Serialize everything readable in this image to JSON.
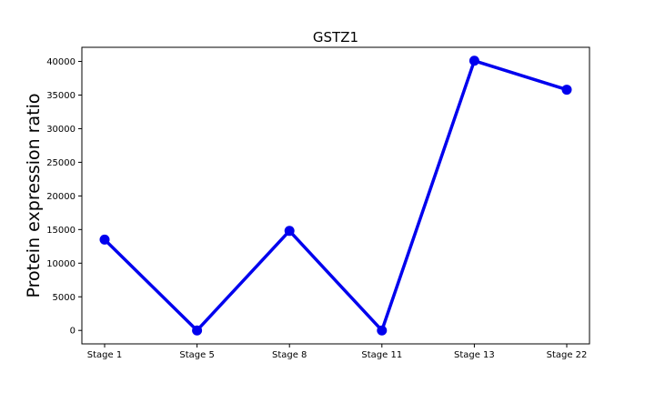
{
  "chart_data": {
    "type": "line",
    "title": "GSTZ1",
    "xlabel": "",
    "ylabel": "Protein expression ratio",
    "categories": [
      "Stage 1",
      "Stage 5",
      "Stage 8",
      "Stage 11",
      "Stage 13",
      "Stage 22"
    ],
    "series": [
      {
        "values": [
          13500,
          0,
          14800,
          0,
          40100,
          35800
        ]
      }
    ],
    "ylim": [
      -2000,
      42100
    ],
    "yticks": [
      0,
      5000,
      10000,
      15000,
      20000,
      25000,
      30000,
      35000,
      40000
    ],
    "ytick_labels": [
      "0",
      "5000",
      "10000",
      "15000",
      "20000",
      "25000",
      "30000",
      "35000",
      "40000"
    ],
    "grid": false,
    "legend": "none",
    "colors": {
      "line": "#0000ee",
      "marker": "#0000ee"
    }
  }
}
